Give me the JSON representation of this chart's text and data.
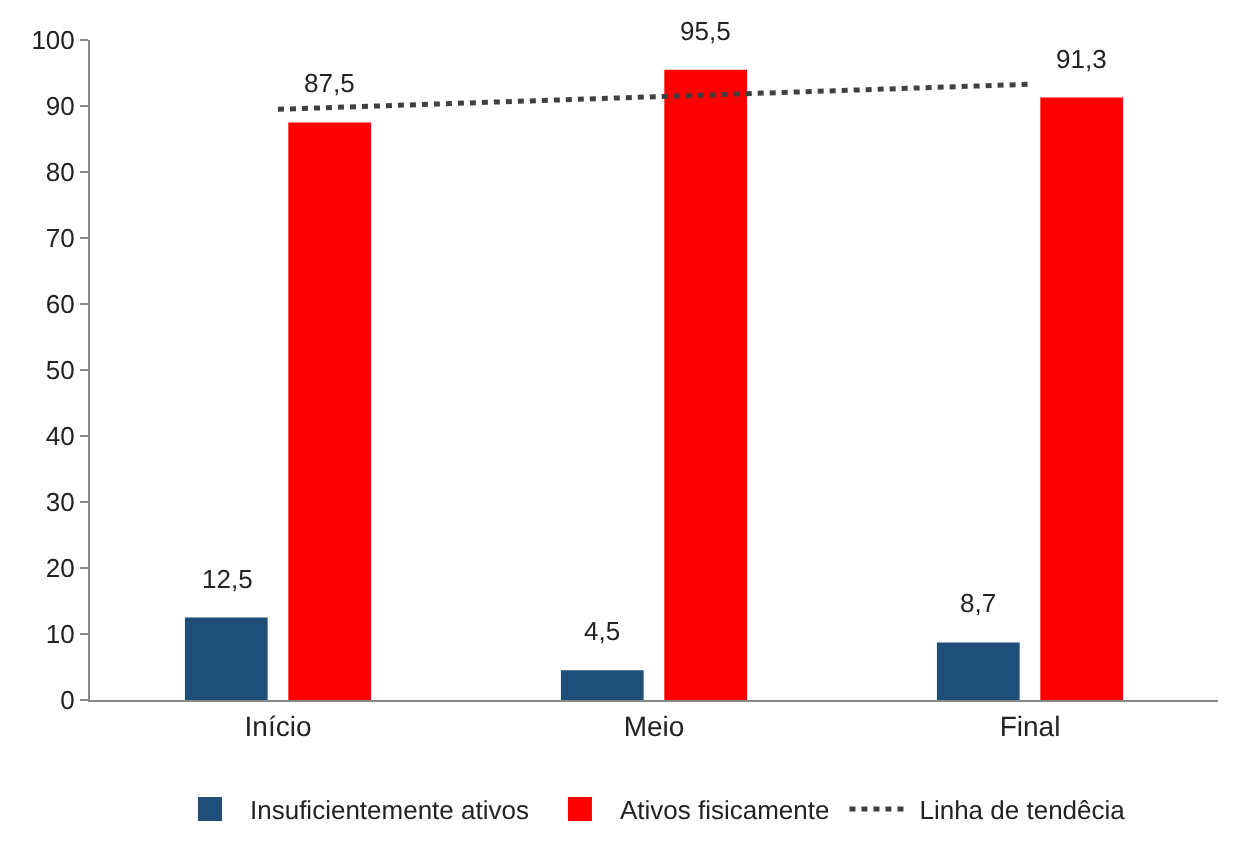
{
  "chart_data": {
    "type": "bar",
    "categories": [
      "Início",
      "Meio",
      "Final"
    ],
    "series": [
      {
        "name": "Insuficientemente ativos",
        "color": "#1f4e79",
        "values": [
          12.5,
          4.5,
          8.7
        ],
        "value_labels": [
          "12,5",
          "4,5",
          "8,7"
        ]
      },
      {
        "name": "Ativos fisicamente",
        "color": "#ff0000",
        "values": [
          87.5,
          95.5,
          91.3
        ],
        "value_labels": [
          "87,5",
          "95,5",
          "91,3"
        ]
      },
      {
        "name": "Linha de tendêcia",
        "type": "line",
        "color": "#404040",
        "values": [
          89.5,
          91.4,
          93.3
        ]
      }
    ],
    "ylim": [
      0,
      100
    ],
    "yticks": [
      0,
      10,
      20,
      30,
      40,
      50,
      60,
      70,
      80,
      90,
      100
    ],
    "grid": false,
    "legend": "bottom",
    "line_style": "dotted",
    "marker": "none"
  }
}
